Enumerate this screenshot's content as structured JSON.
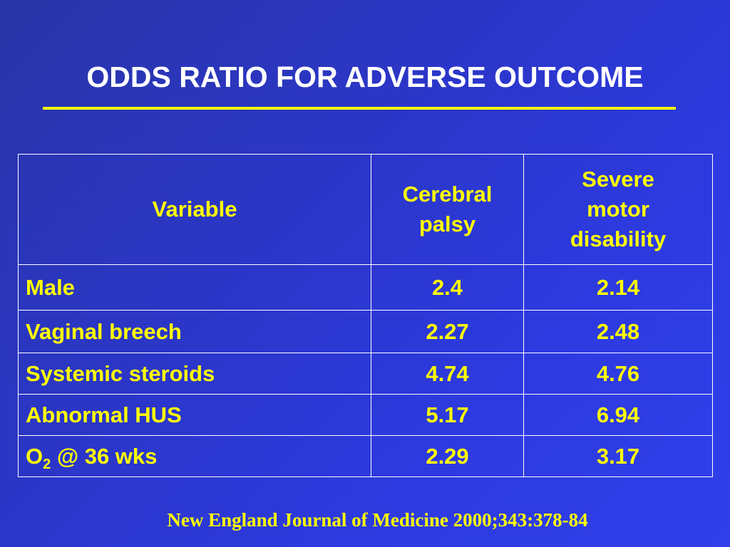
{
  "slide": {
    "title": "ODDS RATIO FOR ADVERSE OUTCOME",
    "citation": "New England Journal of Medicine 2000;343:378-84",
    "colors": {
      "background": "#2b36c8",
      "title_text": "#ffffff",
      "accent": "#ffff00",
      "table_border": "#ffffff"
    }
  },
  "table": {
    "headers": {
      "variable": "Variable",
      "cerebral_palsy_line1": "Cerebral",
      "cerebral_palsy_line2": "palsy",
      "severe_motor_line1": "Severe",
      "severe_motor_line2": "motor",
      "severe_motor_line3": "disability"
    },
    "rows": [
      {
        "variable": "Male",
        "cerebral_palsy": "2.4",
        "severe_motor_disability": "2.14"
      },
      {
        "variable": "Vaginal breech",
        "cerebral_palsy": "2.27",
        "severe_motor_disability": "2.48"
      },
      {
        "variable": "Systemic steroids",
        "cerebral_palsy": "4.74",
        "severe_motor_disability": "4.76"
      },
      {
        "variable": "Abnormal HUS",
        "cerebral_palsy": "5.17",
        "severe_motor_disability": "6.94"
      },
      {
        "variable_prefix": "O",
        "variable_sub": "2",
        "variable_suffix": " @ 36 wks",
        "cerebral_palsy": "2.29",
        "severe_motor_disability": "3.17"
      }
    ]
  }
}
